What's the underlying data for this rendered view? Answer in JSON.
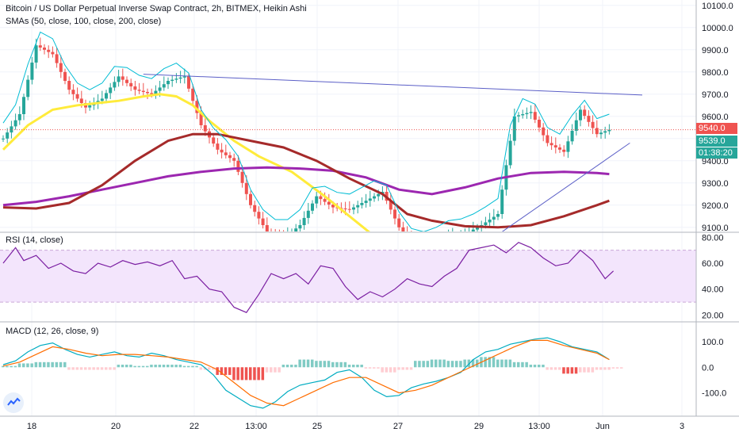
{
  "header": {
    "title": "Bitcoin / US Dollar Perpetual Inverse Swap Contract, 2h, BITMEX, Heikin Ashi",
    "sma_legend": "SMAs (50, close, 100, close, 200, close)",
    "rsi_legend": "RSI (14, close)",
    "macd_legend": "MACD (12, 26, close, 9)"
  },
  "price_tags": {
    "last": "9540.0",
    "prev": "9539.0",
    "countdown": "01:38:20"
  },
  "colors": {
    "bull": "#26a69a",
    "bear": "#ef5350",
    "sma50": "#ffeb3b",
    "sma100": "#9c27b0",
    "sma200": "#a52a2a",
    "channel": "#00bcd4",
    "trend": "#5b5fc7",
    "rsi_line": "#7b1fa2",
    "macd_line": "#00acc1",
    "signal_line": "#ff6d00"
  },
  "chart_data": [
    {
      "type": "candlestick",
      "style": "Heikin Ashi",
      "title": "Bitcoin / US Dollar Perpetual Inverse Swap Contract, 2h, BITMEX, Heikin Ashi",
      "x_ticks": [
        "18",
        "20",
        "22",
        "13:00",
        "25",
        "27",
        "29",
        "13:00",
        "Jun",
        "3"
      ],
      "y_ticks": [
        9100,
        9200,
        9300,
        9400,
        9500,
        9600,
        9700,
        9800,
        9900,
        10000,
        10100
      ],
      "ylim": [
        9085,
        10110
      ],
      "last_price": 9540,
      "open_start": 9500,
      "candle_count": 148,
      "anchors": [
        [
          0,
          9500
        ],
        [
          4,
          9610
        ],
        [
          8,
          9920
        ],
        [
          12,
          9880
        ],
        [
          16,
          9720
        ],
        [
          20,
          9640
        ],
        [
          24,
          9680
        ],
        [
          28,
          9780
        ],
        [
          32,
          9720
        ],
        [
          36,
          9700
        ],
        [
          40,
          9760
        ],
        [
          44,
          9780
        ],
        [
          48,
          9560
        ],
        [
          52,
          9450
        ],
        [
          56,
          9400
        ],
        [
          60,
          9200
        ],
        [
          64,
          9080
        ],
        [
          68,
          9050
        ],
        [
          72,
          9110
        ],
        [
          76,
          9240
        ],
        [
          80,
          9190
        ],
        [
          84,
          9180
        ],
        [
          88,
          9220
        ],
        [
          92,
          9260
        ],
        [
          96,
          9100
        ],
        [
          100,
          9000
        ],
        [
          104,
          9020
        ],
        [
          108,
          9060
        ],
        [
          112,
          9070
        ],
        [
          116,
          9110
        ],
        [
          120,
          9160
        ],
        [
          124,
          9600
        ],
        [
          128,
          9620
        ],
        [
          132,
          9480
        ],
        [
          136,
          9440
        ],
        [
          140,
          9630
        ],
        [
          144,
          9520
        ],
        [
          147,
          9540
        ]
      ],
      "smas": [
        {
          "name": "SMA 50",
          "period": 50,
          "values": [
            [
              0,
              9450
            ],
            [
              6,
              9560
            ],
            [
              12,
              9630
            ],
            [
              18,
              9650
            ],
            [
              28,
              9670
            ],
            [
              34,
              9690
            ],
            [
              38,
              9700
            ],
            [
              42,
              9690
            ],
            [
              46,
              9650
            ],
            [
              50,
              9580
            ],
            [
              56,
              9490
            ],
            [
              62,
              9420
            ],
            [
              70,
              9350
            ],
            [
              78,
              9240
            ],
            [
              86,
              9120
            ],
            [
              90,
              9060
            ]
          ]
        },
        {
          "name": "SMA 100",
          "period": 100,
          "values": [
            [
              0,
              9200
            ],
            [
              8,
              9215
            ],
            [
              16,
              9240
            ],
            [
              24,
              9270
            ],
            [
              32,
              9300
            ],
            [
              40,
              9330
            ],
            [
              48,
              9350
            ],
            [
              56,
              9365
            ],
            [
              64,
              9370
            ],
            [
              72,
              9365
            ],
            [
              80,
              9355
            ],
            [
              88,
              9325
            ],
            [
              96,
              9270
            ],
            [
              104,
              9250
            ],
            [
              112,
              9280
            ],
            [
              120,
              9320
            ],
            [
              128,
              9345
            ],
            [
              136,
              9350
            ],
            [
              144,
              9345
            ],
            [
              147,
              9340
            ]
          ]
        },
        {
          "name": "SMA 200",
          "period": 200,
          "values": [
            [
              0,
              9190
            ],
            [
              8,
              9185
            ],
            [
              16,
              9210
            ],
            [
              24,
              9290
            ],
            [
              32,
              9400
            ],
            [
              40,
              9490
            ],
            [
              46,
              9520
            ],
            [
              52,
              9520
            ],
            [
              60,
              9490
            ],
            [
              68,
              9460
            ],
            [
              76,
              9400
            ],
            [
              84,
              9320
            ],
            [
              92,
              9250
            ],
            [
              98,
              9160
            ],
            [
              104,
              9130
            ],
            [
              112,
              9105
            ],
            [
              120,
              9100
            ],
            [
              128,
              9110
            ],
            [
              136,
              9150
            ],
            [
              144,
              9200
            ],
            [
              147,
              9220
            ]
          ]
        }
      ],
      "overlays": {
        "resistance_line": {
          "from": [
            34,
            9790
          ],
          "to": [
            155,
            9696
          ]
        },
        "support_line": {
          "from": [
            121,
            9080
          ],
          "to": [
            152,
            9480
          ]
        }
      }
    },
    {
      "type": "line",
      "title": "RSI (14, close)",
      "y_ticks": [
        20,
        40,
        60,
        80
      ],
      "ylim": [
        16,
        82
      ],
      "band": [
        30,
        70
      ],
      "x": [
        0,
        3,
        5,
        8,
        11,
        14,
        17,
        20,
        23,
        26,
        29,
        32,
        35,
        38,
        41,
        44,
        47,
        50,
        53,
        56,
        59,
        62,
        65,
        68,
        71,
        74,
        77,
        80,
        83,
        86,
        89,
        92,
        95,
        98,
        101,
        104,
        107,
        110,
        113,
        116,
        119,
        122,
        125,
        128,
        131,
        134,
        137,
        140,
        143,
        146,
        148
      ],
      "values": [
        60,
        72,
        62,
        66,
        56,
        60,
        54,
        52,
        60,
        57,
        62,
        59,
        61,
        58,
        62,
        48,
        50,
        40,
        38,
        26,
        22,
        36,
        52,
        48,
        52,
        44,
        58,
        56,
        42,
        32,
        38,
        34,
        40,
        48,
        44,
        42,
        50,
        56,
        70,
        72,
        74,
        68,
        76,
        72,
        64,
        58,
        60,
        70,
        62,
        48,
        54
      ]
    },
    {
      "type": "line",
      "title": "MACD (12, 26, close, 9)",
      "y_ticks": [
        -100,
        0,
        100
      ],
      "ylim": [
        -185,
        165
      ],
      "series": [
        {
          "name": "MACD",
          "x": [
            0,
            3,
            6,
            9,
            12,
            15,
            18,
            21,
            24,
            27,
            30,
            33,
            36,
            39,
            42,
            45,
            48,
            51,
            54,
            57,
            60,
            63,
            66,
            69,
            72,
            75,
            78,
            81,
            84,
            87,
            90,
            93,
            96,
            99,
            102,
            105,
            108,
            111,
            114,
            117,
            120,
            123,
            126,
            129,
            132,
            135,
            138,
            141,
            144,
            147
          ],
          "values": [
            10,
            25,
            60,
            85,
            95,
            70,
            50,
            40,
            50,
            60,
            45,
            40,
            55,
            45,
            30,
            20,
            10,
            -30,
            -90,
            -120,
            -150,
            -160,
            -135,
            -95,
            -70,
            -60,
            -50,
            -20,
            -10,
            -40,
            -90,
            -115,
            -110,
            -80,
            -65,
            -55,
            -40,
            -20,
            30,
            60,
            70,
            90,
            100,
            110,
            115,
            100,
            80,
            70,
            60,
            30
          ]
        },
        {
          "name": "Signal",
          "x": [
            0,
            4,
            8,
            12,
            16,
            20,
            24,
            28,
            32,
            36,
            40,
            44,
            48,
            52,
            56,
            60,
            64,
            68,
            72,
            76,
            80,
            84,
            88,
            92,
            96,
            100,
            104,
            108,
            112,
            116,
            120,
            124,
            128,
            132,
            136,
            140,
            144,
            147
          ],
          "values": [
            5,
            20,
            50,
            80,
            70,
            55,
            45,
            50,
            50,
            45,
            40,
            30,
            20,
            -10,
            -60,
            -110,
            -140,
            -150,
            -120,
            -90,
            -60,
            -40,
            -40,
            -70,
            -100,
            -90,
            -70,
            -40,
            -10,
            20,
            50,
            80,
            105,
            105,
            85,
            70,
            55,
            30
          ]
        },
        {
          "name": "Histogram",
          "type": "bar",
          "x": [
            0,
            4,
            8,
            12,
            16,
            20,
            24,
            28,
            32,
            36,
            40,
            44,
            48,
            52,
            56,
            60,
            64,
            68,
            72,
            76,
            80,
            84,
            88,
            92,
            96,
            100,
            104,
            108,
            112,
            116,
            120,
            124,
            128,
            132,
            136,
            140,
            144,
            147
          ],
          "values": [
            5,
            15,
            20,
            20,
            -10,
            -10,
            -10,
            10,
            5,
            10,
            10,
            5,
            -10,
            -30,
            -50,
            -50,
            -20,
            10,
            30,
            25,
            20,
            10,
            -5,
            -20,
            -10,
            25,
            30,
            25,
            30,
            40,
            30,
            20,
            10,
            -10,
            -25,
            -20,
            -10,
            -5
          ]
        }
      ]
    }
  ]
}
